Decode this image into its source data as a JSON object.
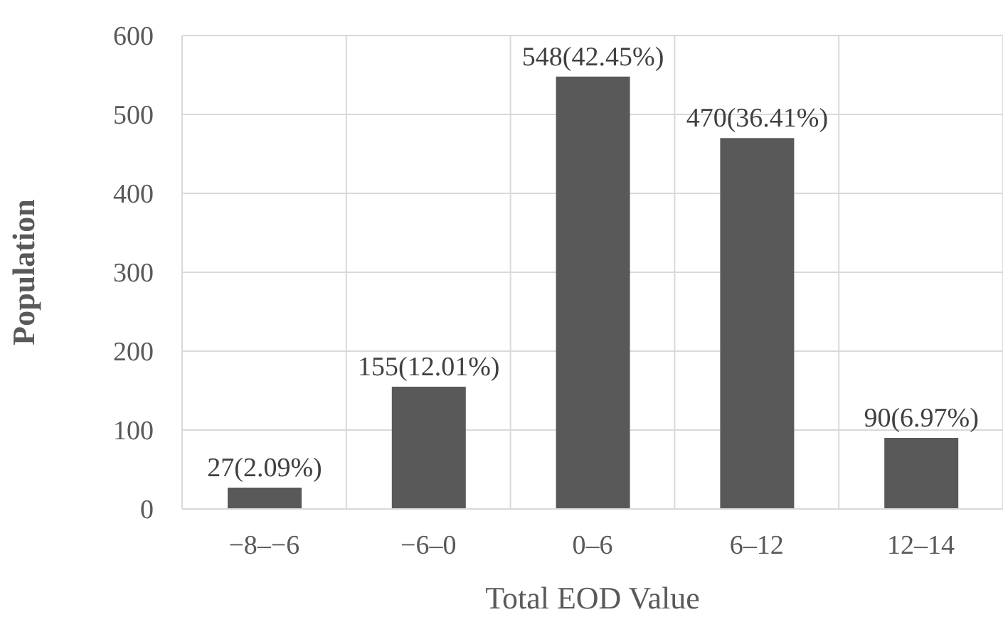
{
  "chart_data": {
    "type": "bar",
    "xlabel": "Total EOD Value",
    "ylabel": "Population",
    "categories": [
      "−8–−6",
      "−6–0",
      "0–6",
      "6–12",
      "12–14"
    ],
    "values": [
      27,
      155,
      548,
      470,
      90
    ],
    "value_labels": [
      "27(2.09%)",
      "155(12.01%)",
      "548(42.45%)",
      "470(36.41%)",
      "90(6.97%)"
    ],
    "color": "#595959",
    "ylim": [
      0,
      600
    ],
    "yticks": [
      0,
      100,
      200,
      300,
      400,
      500,
      600
    ],
    "grid": true,
    "legend": false
  }
}
